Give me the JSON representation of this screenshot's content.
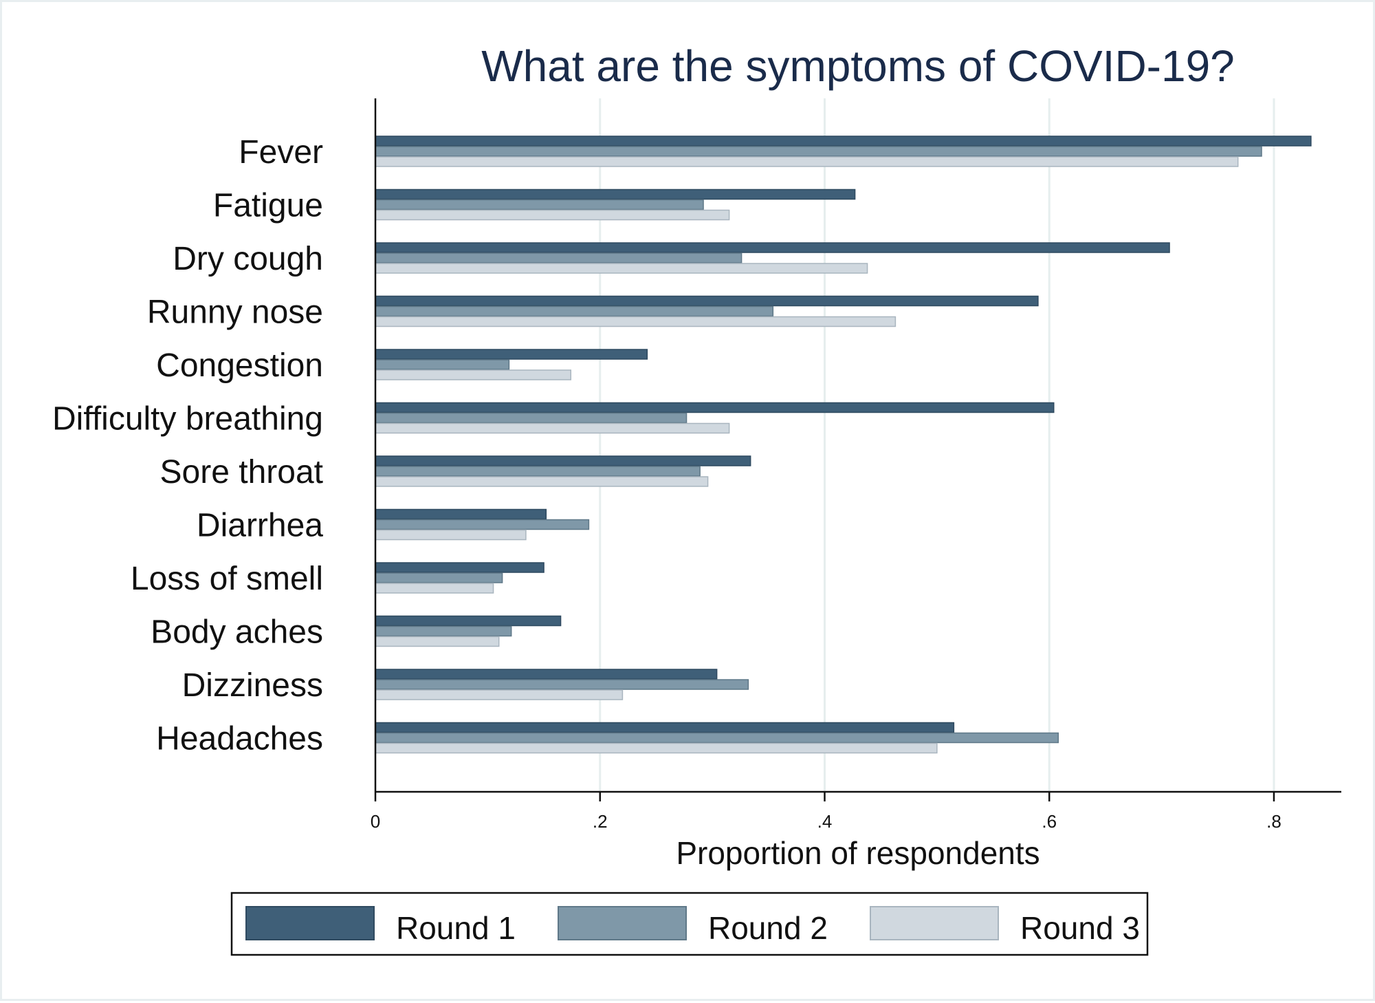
{
  "chart_data": {
    "type": "bar",
    "orientation": "horizontal",
    "title": "What are the symptoms of COVID-19?",
    "xlabel": "Proportion of respondents",
    "ylabel": "",
    "xlim": [
      0,
      0.86
    ],
    "xticks": [
      0,
      0.2,
      0.4,
      0.6,
      0.8
    ],
    "xtick_labels": [
      "0",
      ".2",
      ".4",
      ".6",
      ".8"
    ],
    "grid": true,
    "legend_position": "bottom",
    "categories": [
      "Fever",
      "Fatigue",
      "Dry cough",
      "Runny nose",
      "Congestion",
      "Difficulty breathing",
      "Sore throat",
      "Diarrhea",
      "Loss of smell",
      "Body aches",
      "Dizziness",
      "Headaches"
    ],
    "series": [
      {
        "name": "Round 1",
        "color": "#3f5f78",
        "values": [
          0.833,
          0.427,
          0.707,
          0.59,
          0.242,
          0.604,
          0.334,
          0.152,
          0.15,
          0.165,
          0.304,
          0.515
        ]
      },
      {
        "name": "Round 2",
        "color": "#7f98a8",
        "values": [
          0.789,
          0.292,
          0.326,
          0.354,
          0.119,
          0.277,
          0.289,
          0.19,
          0.113,
          0.121,
          0.332,
          0.608
        ]
      },
      {
        "name": "Round 3",
        "color": "#d0d8df",
        "values": [
          0.768,
          0.315,
          0.438,
          0.463,
          0.174,
          0.315,
          0.296,
          0.134,
          0.105,
          0.11,
          0.22,
          0.5
        ]
      }
    ]
  }
}
